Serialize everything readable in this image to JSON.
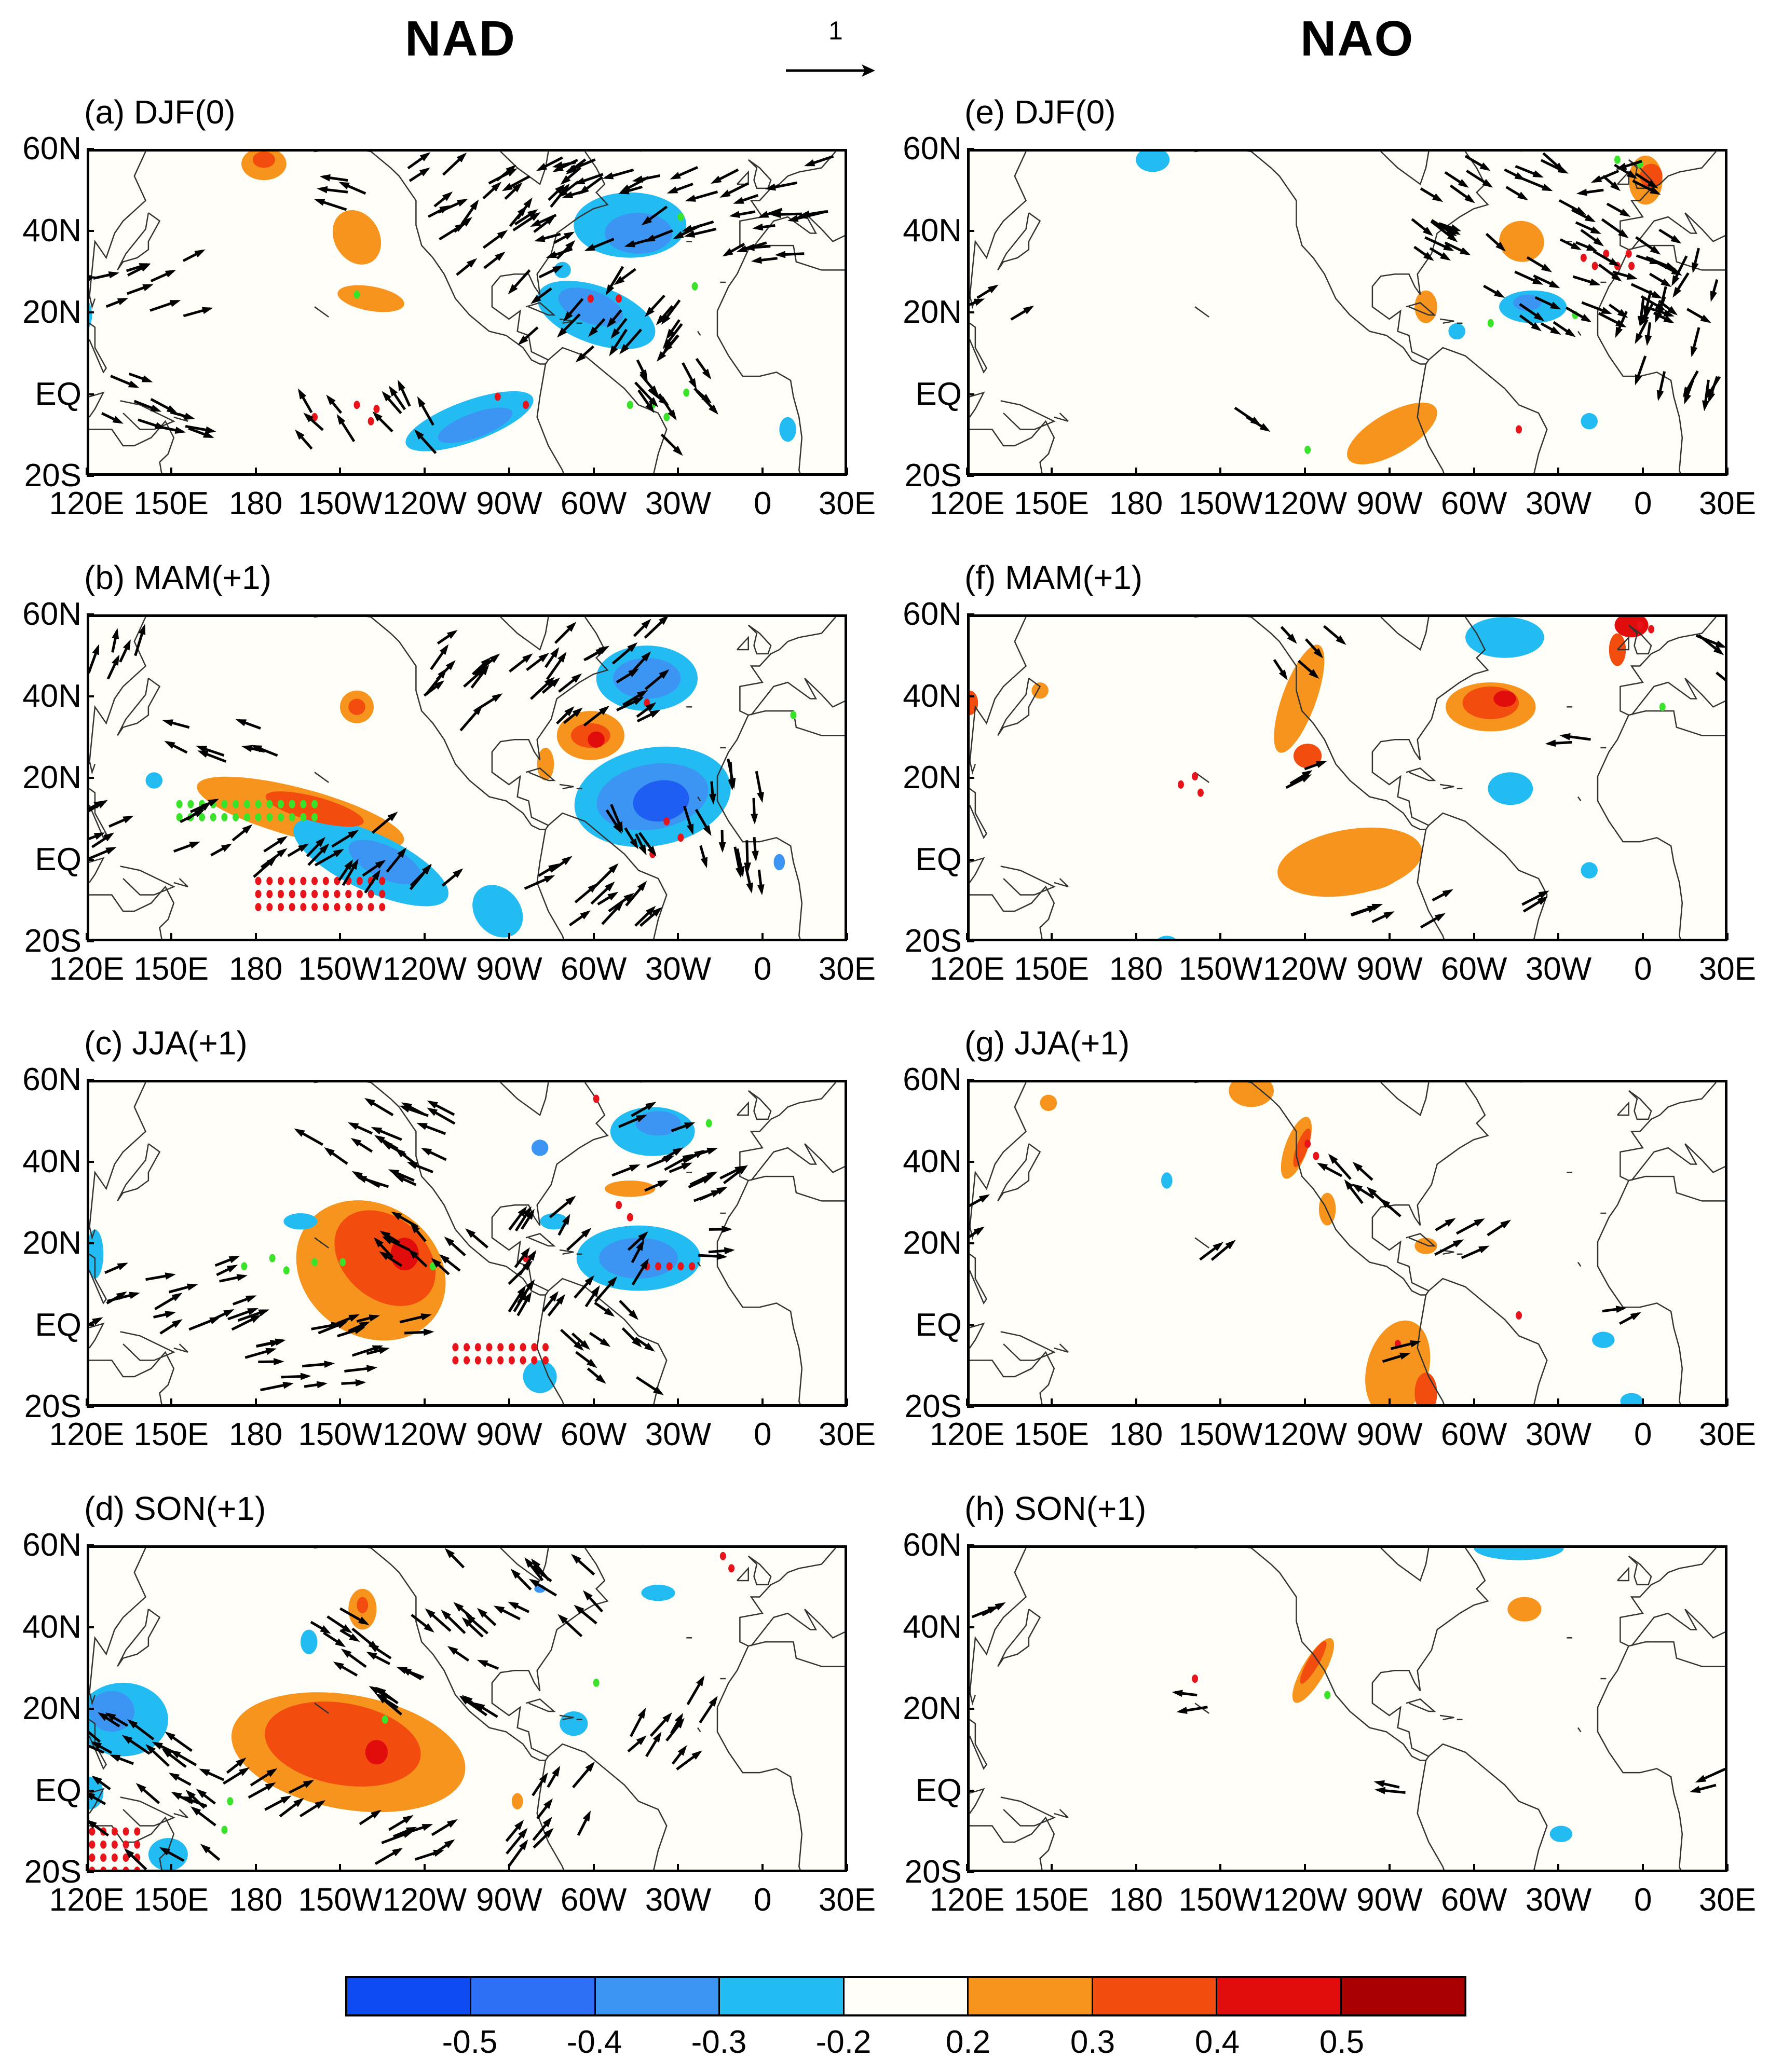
{
  "titles": {
    "left": "NAD",
    "right": "NAO",
    "reference_vector": "1"
  },
  "panels": [
    {
      "id": "a",
      "label": "(a) DJF(0)"
    },
    {
      "id": "b",
      "label": "(b) MAM(+1)"
    },
    {
      "id": "c",
      "label": "(c) JJA(+1)"
    },
    {
      "id": "d",
      "label": "(d) SON(+1)"
    },
    {
      "id": "e",
      "label": "(e) DJF(0)"
    },
    {
      "id": "f",
      "label": "(f) MAM(+1)"
    },
    {
      "id": "g",
      "label": "(g) JJA(+1)"
    },
    {
      "id": "h",
      "label": "(h) SON(+1)"
    }
  ],
  "axes": {
    "lat_ticks": [
      "60N",
      "40N",
      "20N",
      "EQ",
      "20S"
    ],
    "lon_ticks": [
      "120E",
      "150E",
      "180",
      "150W",
      "120W",
      "90W",
      "60W",
      "30W",
      "0",
      "30E"
    ]
  },
  "colorbar": {
    "labels": [
      "-0.5",
      "-0.4",
      "-0.3",
      "-0.2",
      "0.2",
      "0.3",
      "0.4",
      "0.5"
    ],
    "colors": [
      "#0d4af0",
      "#2d6ff5",
      "#3d95f3",
      "#22bcf3",
      "#fffef8",
      "#f7941d",
      "#f24d0f",
      "#e10c0c",
      "#a80000"
    ]
  },
  "colors": {
    "negative_strong": "#1f5ef2",
    "negative_medium": "#3d95f3",
    "negative_weak": "#22bcf3",
    "positive_weak": "#f7941d",
    "positive_medium": "#f24d0f",
    "positive_strong": "#e10c0c",
    "significance_red": "#e8141b",
    "significance_green": "#39e32a"
  }
}
